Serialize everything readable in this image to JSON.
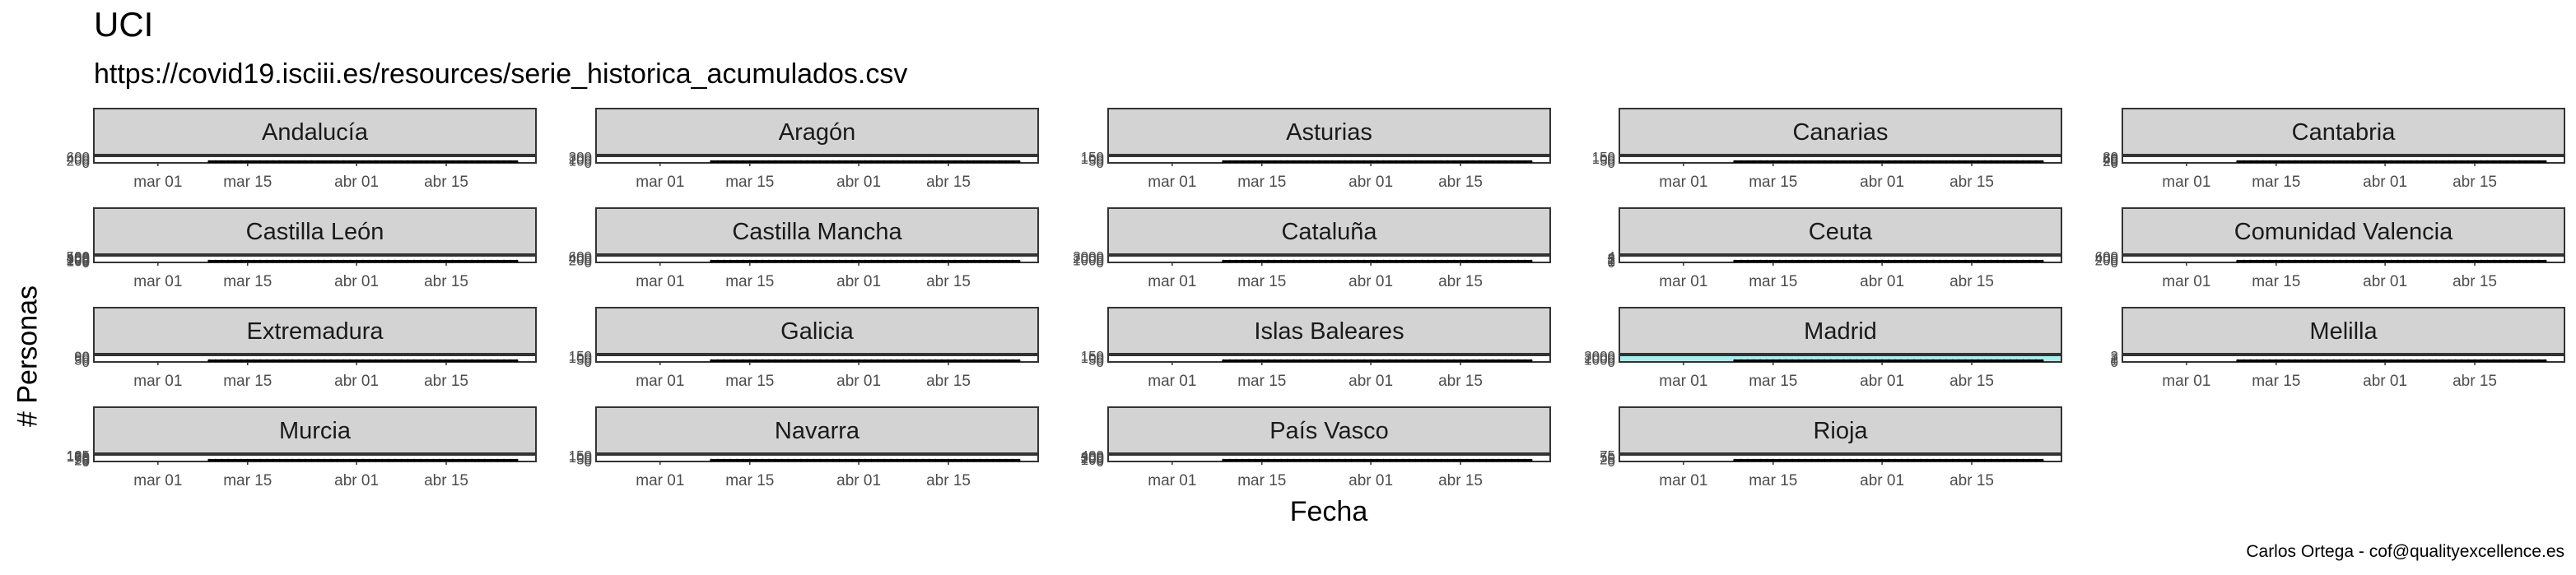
{
  "title": "UCI",
  "subtitle": "https://covid19.isciii.es/resources/serie_historica_acumulados.csv",
  "caption": "Carlos Ortega - cof@qualityexcellence.es",
  "colors": {
    "panel_strip": "#d3d3d3",
    "panel_border": "#333333",
    "line": "#000000",
    "highlight_fill": "#a8eef0"
  },
  "chart_data": {
    "type": "line",
    "facet_by": "region",
    "xlabel": "Fecha",
    "ylabel": "# Personas",
    "x_ticks": [
      "2020-03-01",
      "2020-03-15",
      "2020-04-01",
      "2020-04-15"
    ],
    "x_tick_labels": [
      "mar 01",
      "mar 15",
      "abr 01",
      "abr 15"
    ],
    "xlim": [
      "2020-02-20",
      "2020-04-29"
    ],
    "panels": [
      {
        "region": "Andalucía",
        "y_tick_labels": [
          "0",
          "200",
          "400",
          "600"
        ],
        "ylim": [
          0,
          650
        ]
      },
      {
        "region": "Aragón",
        "y_tick_labels": [
          "0",
          "100",
          "200",
          "300"
        ],
        "ylim": [
          0,
          330
        ]
      },
      {
        "region": "Asturias",
        "y_tick_labels": [
          "0",
          "50",
          "100",
          "150"
        ],
        "ylim": [
          0,
          160
        ]
      },
      {
        "region": "Canarias",
        "y_tick_labels": [
          "0",
          "50",
          "100",
          "150"
        ],
        "ylim": [
          0,
          160
        ]
      },
      {
        "region": "Cantabria",
        "y_tick_labels": [
          "0",
          "20",
          "40",
          "60",
          "80"
        ],
        "ylim": [
          0,
          85
        ]
      },
      {
        "region": "Castilla León",
        "y_tick_labels": [
          "0",
          "100",
          "200",
          "300",
          "400",
          "500"
        ],
        "ylim": [
          0,
          520
        ]
      },
      {
        "region": "Castilla Mancha",
        "y_tick_labels": [
          "0",
          "200",
          "400",
          "600"
        ],
        "ylim": [
          0,
          650
        ]
      },
      {
        "region": "Cataluña",
        "y_tick_labels": [
          "0",
          "1000",
          "2000",
          "3000"
        ],
        "ylim": [
          0,
          3200
        ]
      },
      {
        "region": "Ceuta",
        "y_tick_labels": [
          "0",
          "1",
          "2",
          "3",
          "4"
        ],
        "ylim": [
          0,
          4.2
        ]
      },
      {
        "region": "Comunidad Valencia",
        "y_tick_labels": [
          "0",
          "200",
          "400",
          "600"
        ],
        "ylim": [
          0,
          650
        ]
      },
      {
        "region": "Extremadura",
        "y_tick_labels": [
          "0",
          "30",
          "60",
          "90"
        ],
        "ylim": [
          0,
          100
        ]
      },
      {
        "region": "Galicia",
        "y_tick_labels": [
          "0",
          "50",
          "100",
          "150"
        ],
        "ylim": [
          0,
          160
        ]
      },
      {
        "region": "Islas Baleares",
        "y_tick_labels": [
          "0",
          "50",
          "100",
          "150"
        ],
        "ylim": [
          0,
          160
        ]
      },
      {
        "region": "Madrid",
        "y_tick_labels": [
          "0",
          "1000",
          "2000",
          "3000"
        ],
        "ylim": [
          0,
          3200
        ],
        "highlight": true
      },
      {
        "region": "Melilla",
        "y_tick_labels": [
          "0",
          "1",
          "2",
          "3"
        ],
        "ylim": [
          0,
          3.2
        ]
      },
      {
        "region": "Murcia",
        "y_tick_labels": [
          "0",
          "25",
          "50",
          "75",
          "100",
          "125"
        ],
        "ylim": [
          0,
          130
        ]
      },
      {
        "region": "Navarra",
        "y_tick_labels": [
          "0",
          "50",
          "100",
          "150"
        ],
        "ylim": [
          0,
          160
        ]
      },
      {
        "region": "País Vasco",
        "y_tick_labels": [
          "0",
          "100",
          "200",
          "300",
          "400"
        ],
        "ylim": [
          0,
          420
        ]
      },
      {
        "region": "Rioja",
        "y_tick_labels": [
          "0",
          "25",
          "50",
          "75"
        ],
        "ylim": [
          0,
          80
        ]
      }
    ]
  }
}
